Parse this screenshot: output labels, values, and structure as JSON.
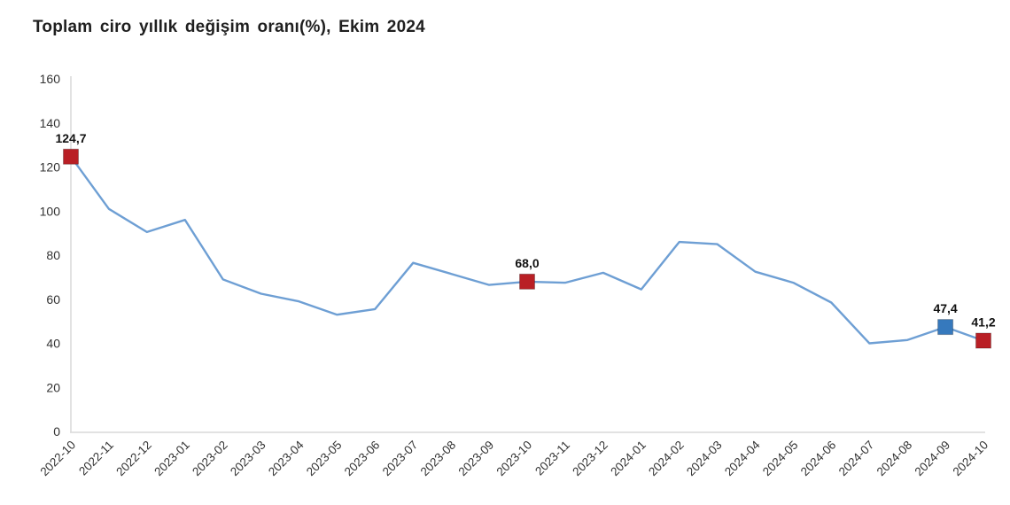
{
  "title": "Toplam ciro yıllık değişim oranı(%), Ekim 2024",
  "chart_data": {
    "type": "line",
    "title": "Toplam ciro yıllık değişim oranı(%), Ekim 2024",
    "xlabel": "",
    "ylabel": "",
    "ylim": [
      0,
      160
    ],
    "yticks": [
      0,
      20,
      40,
      60,
      80,
      100,
      120,
      140,
      160
    ],
    "grid": false,
    "legend_position": "none",
    "line_color": "#6E9FD4",
    "axis_color": "#D9D9D9",
    "categories": [
      "2022-10",
      "2022-11",
      "2022-12",
      "2023-01",
      "2023-02",
      "2023-03",
      "2023-04",
      "2023-05",
      "2023-06",
      "2023-07",
      "2023-08",
      "2023-09",
      "2023-10",
      "2023-11",
      "2023-12",
      "2024-01",
      "2024-02",
      "2024-03",
      "2024-04",
      "2024-05",
      "2024-06",
      "2024-07",
      "2024-08",
      "2024-09",
      "2024-10"
    ],
    "values": [
      124.7,
      101.0,
      90.5,
      96.0,
      69.0,
      62.5,
      59.0,
      53.0,
      55.5,
      76.5,
      71.5,
      66.5,
      68.0,
      67.5,
      72.0,
      64.5,
      86.0,
      85.0,
      72.5,
      67.5,
      58.5,
      40.0,
      41.5,
      47.4,
      41.2
    ],
    "annotated_points": [
      {
        "category": "2022-10",
        "value": 124.7,
        "label": "124,7",
        "marker_color": "#B91F25"
      },
      {
        "category": "2023-10",
        "value": 68.0,
        "label": "68,0",
        "marker_color": "#B91F25"
      },
      {
        "category": "2024-09",
        "value": 47.4,
        "label": "47,4",
        "marker_color": "#3679BD"
      },
      {
        "category": "2024-10",
        "value": 41.2,
        "label": "41,2",
        "marker_color": "#B91F25"
      }
    ]
  }
}
